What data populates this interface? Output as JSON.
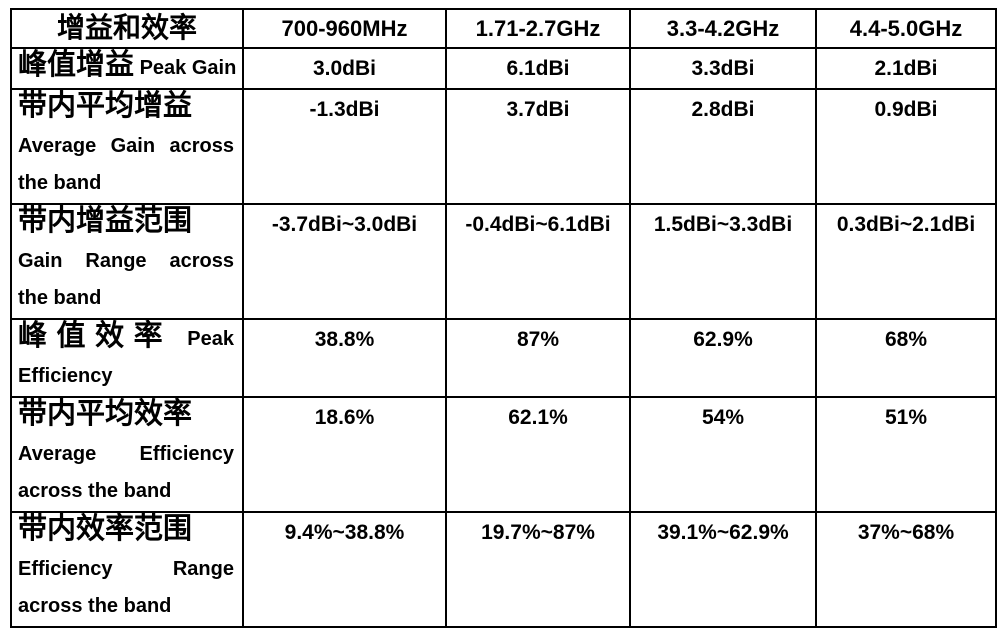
{
  "table": {
    "header": {
      "label": "增益和效率",
      "columns": [
        "700-960MHz",
        "1.71-2.7GHz",
        "3.3-4.2GHz",
        "4.4-5.0GHz"
      ]
    },
    "rows": [
      {
        "name": "peak-gain",
        "label_lines": [
          {
            "text": "峰值增益 Peak Gain",
            "justify": false
          }
        ],
        "values": [
          "3.0dBi",
          "6.1dBi",
          "3.3dBi",
          "2.1dBi"
        ]
      },
      {
        "name": "average-gain",
        "label_lines": [
          {
            "text": "带内平均增益",
            "justify": false
          },
          {
            "text": "Average Gain across",
            "justify": true
          },
          {
            "text": "the band",
            "justify": false
          }
        ],
        "values": [
          "-1.3dBi",
          "3.7dBi",
          "2.8dBi",
          "0.9dBi"
        ]
      },
      {
        "name": "gain-range",
        "label_lines": [
          {
            "text": "带内增益范围",
            "justify": false
          },
          {
            "text": "Gain Range across",
            "justify": true
          },
          {
            "text": "the band",
            "justify": false
          }
        ],
        "values": [
          "-3.7dBi~3.0dBi",
          "-0.4dBi~6.1dBi",
          "1.5dBi~3.3dBi",
          "0.3dBi~2.1dBi"
        ]
      },
      {
        "name": "peak-efficiency",
        "label_lines": [
          {
            "text": "峰值效率 Peak",
            "justify": true
          },
          {
            "text": "Efficiency",
            "justify": false
          }
        ],
        "values": [
          "38.8%",
          "87%",
          "62.9%",
          "68%"
        ]
      },
      {
        "name": "average-efficiency",
        "label_lines": [
          {
            "text": "带内平均效率",
            "justify": false
          },
          {
            "text": "Average Efficiency",
            "justify": true
          },
          {
            "text": "across the band",
            "justify": false
          }
        ],
        "values": [
          "18.6%",
          "62.1%",
          "54%",
          "51%"
        ]
      },
      {
        "name": "efficiency-range",
        "label_lines": [
          {
            "text": "带内效率范围",
            "justify": false
          },
          {
            "text": "Efficiency Range",
            "justify": true
          },
          {
            "text": "across the band",
            "justify": false
          }
        ],
        "values": [
          "9.4%~38.8%",
          "19.7%~87%",
          "39.1%~62.9%",
          "37%~68%"
        ]
      }
    ]
  },
  "colors": {
    "border": "#000000",
    "text": "#000000",
    "background": "#ffffff"
  }
}
